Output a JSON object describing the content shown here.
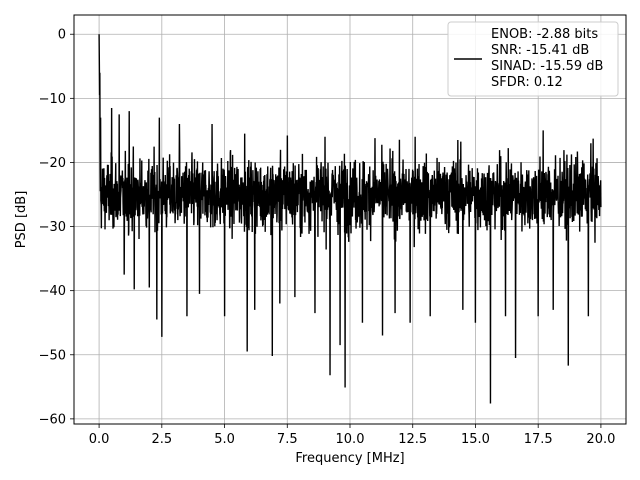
{
  "chart_data": {
    "type": "line",
    "title": "",
    "xlabel": "Frequency [MHz]",
    "ylabel": "PSD [dB]",
    "xlim": [
      -1.0,
      21.0
    ],
    "ylim": [
      -60.8,
      3.0
    ],
    "x_ticks": [
      0.0,
      2.5,
      5.0,
      7.5,
      10.0,
      12.5,
      15.0,
      17.5,
      20.0
    ],
    "x_tick_labels": [
      "0.0",
      "2.5",
      "5.0",
      "7.5",
      "10.0",
      "12.5",
      "15.0",
      "17.5",
      "20.0"
    ],
    "y_ticks": [
      0,
      -10,
      -20,
      -30,
      -40,
      -50,
      -60
    ],
    "y_tick_labels": [
      "0",
      "−10",
      "−20",
      "−30",
      "−40",
      "−50",
      "−60"
    ],
    "grid": true,
    "legend_position": "top-right",
    "legend_entries": [
      "ENOB: -2.88 bits",
      "SNR: -15.41 dB",
      "SINAD: -15.59 dB",
      "SFDR: 0.12"
    ],
    "series": [
      {
        "color": "#000000",
        "x_range": [
          0.0,
          20.0
        ],
        "peak": {
          "x": 0.0,
          "y": 0.0
        },
        "noise_floor": {
          "mean": -25.0,
          "upper_envelope": -15.0,
          "lower_envelope": -35.0
        },
        "notable_dips": [
          {
            "x": 1.0,
            "y": -37.5
          },
          {
            "x": 1.4,
            "y": -39.8
          },
          {
            "x": 2.0,
            "y": -39.5
          },
          {
            "x": 2.3,
            "y": -44.5
          },
          {
            "x": 2.5,
            "y": -47.2
          },
          {
            "x": 3.5,
            "y": -44.0
          },
          {
            "x": 4.0,
            "y": -40.5
          },
          {
            "x": 4.5,
            "y": -40.0
          },
          {
            "x": 5.0,
            "y": -44.0
          },
          {
            "x": 5.9,
            "y": -49.5
          },
          {
            "x": 6.2,
            "y": -43.0
          },
          {
            "x": 6.9,
            "y": -50.2
          },
          {
            "x": 7.2,
            "y": -42.0
          },
          {
            "x": 7.8,
            "y": -41.0
          },
          {
            "x": 8.6,
            "y": -43.5
          },
          {
            "x": 9.2,
            "y": -53.2
          },
          {
            "x": 9.6,
            "y": -48.5
          },
          {
            "x": 9.8,
            "y": -55.1
          },
          {
            "x": 10.5,
            "y": -45.0
          },
          {
            "x": 11.3,
            "y": -47.0
          },
          {
            "x": 11.8,
            "y": -43.5
          },
          {
            "x": 12.4,
            "y": -45.0
          },
          {
            "x": 13.2,
            "y": -44.0
          },
          {
            "x": 14.5,
            "y": -43.0
          },
          {
            "x": 15.0,
            "y": -45.0
          },
          {
            "x": 15.6,
            "y": -57.6
          },
          {
            "x": 16.2,
            "y": -44.0
          },
          {
            "x": 16.6,
            "y": -50.5
          },
          {
            "x": 17.5,
            "y": -44.0
          },
          {
            "x": 18.1,
            "y": -43.0
          },
          {
            "x": 18.7,
            "y": -51.7
          },
          {
            "x": 19.5,
            "y": -44.0
          }
        ],
        "notable_peaks": [
          {
            "x": 0.5,
            "y": -11.5
          },
          {
            "x": 0.8,
            "y": -12.5
          },
          {
            "x": 1.2,
            "y": -12.0
          },
          {
            "x": 2.4,
            "y": -13.0
          },
          {
            "x": 3.2,
            "y": -14.0
          },
          {
            "x": 4.5,
            "y": -14.0
          },
          {
            "x": 5.8,
            "y": -15.5
          },
          {
            "x": 7.5,
            "y": -15.8
          },
          {
            "x": 9.0,
            "y": -16.0
          },
          {
            "x": 11.0,
            "y": -16.2
          },
          {
            "x": 12.6,
            "y": -16.0
          },
          {
            "x": 14.3,
            "y": -16.5
          },
          {
            "x": 17.7,
            "y": -15.0
          },
          {
            "x": 19.6,
            "y": -17.0
          }
        ]
      }
    ]
  }
}
